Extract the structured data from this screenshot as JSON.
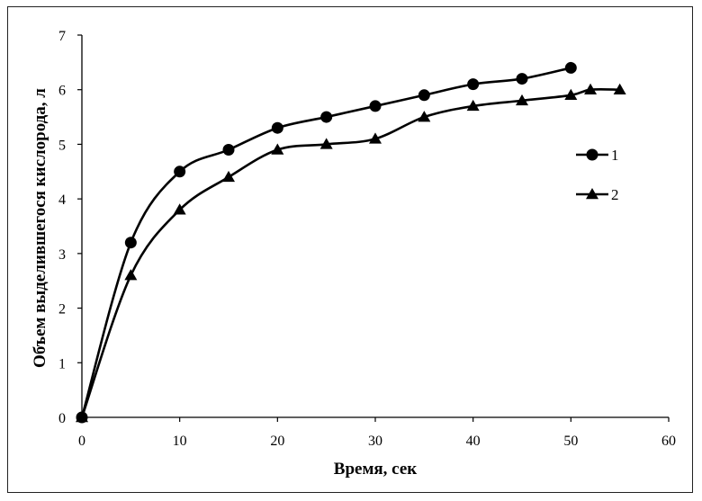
{
  "chart_data": {
    "type": "line",
    "title": "",
    "xlabel": "Время, сек",
    "ylabel": "Объем выделившегося кислорода, л",
    "xlim": [
      0,
      60
    ],
    "ylim": [
      0,
      7
    ],
    "xticks": [
      0,
      10,
      20,
      30,
      40,
      50,
      60
    ],
    "yticks": [
      0,
      1,
      2,
      3,
      4,
      5,
      6,
      7
    ],
    "grid": false,
    "legend_position": "right",
    "series": [
      {
        "name": "1",
        "marker": "circle",
        "color": "#000000",
        "x": [
          0,
          5,
          10,
          15,
          20,
          25,
          30,
          35,
          40,
          45,
          50
        ],
        "y": [
          0,
          3.2,
          4.5,
          4.9,
          5.3,
          5.5,
          5.7,
          5.9,
          6.1,
          6.2,
          6.4
        ]
      },
      {
        "name": "2",
        "marker": "triangle",
        "color": "#000000",
        "x": [
          0,
          5,
          10,
          15,
          20,
          25,
          30,
          35,
          40,
          45,
          50,
          52,
          55
        ],
        "y": [
          0,
          2.6,
          3.8,
          4.4,
          4.9,
          5.0,
          5.1,
          5.5,
          5.7,
          5.8,
          5.9,
          6.0,
          6.0
        ]
      }
    ]
  }
}
